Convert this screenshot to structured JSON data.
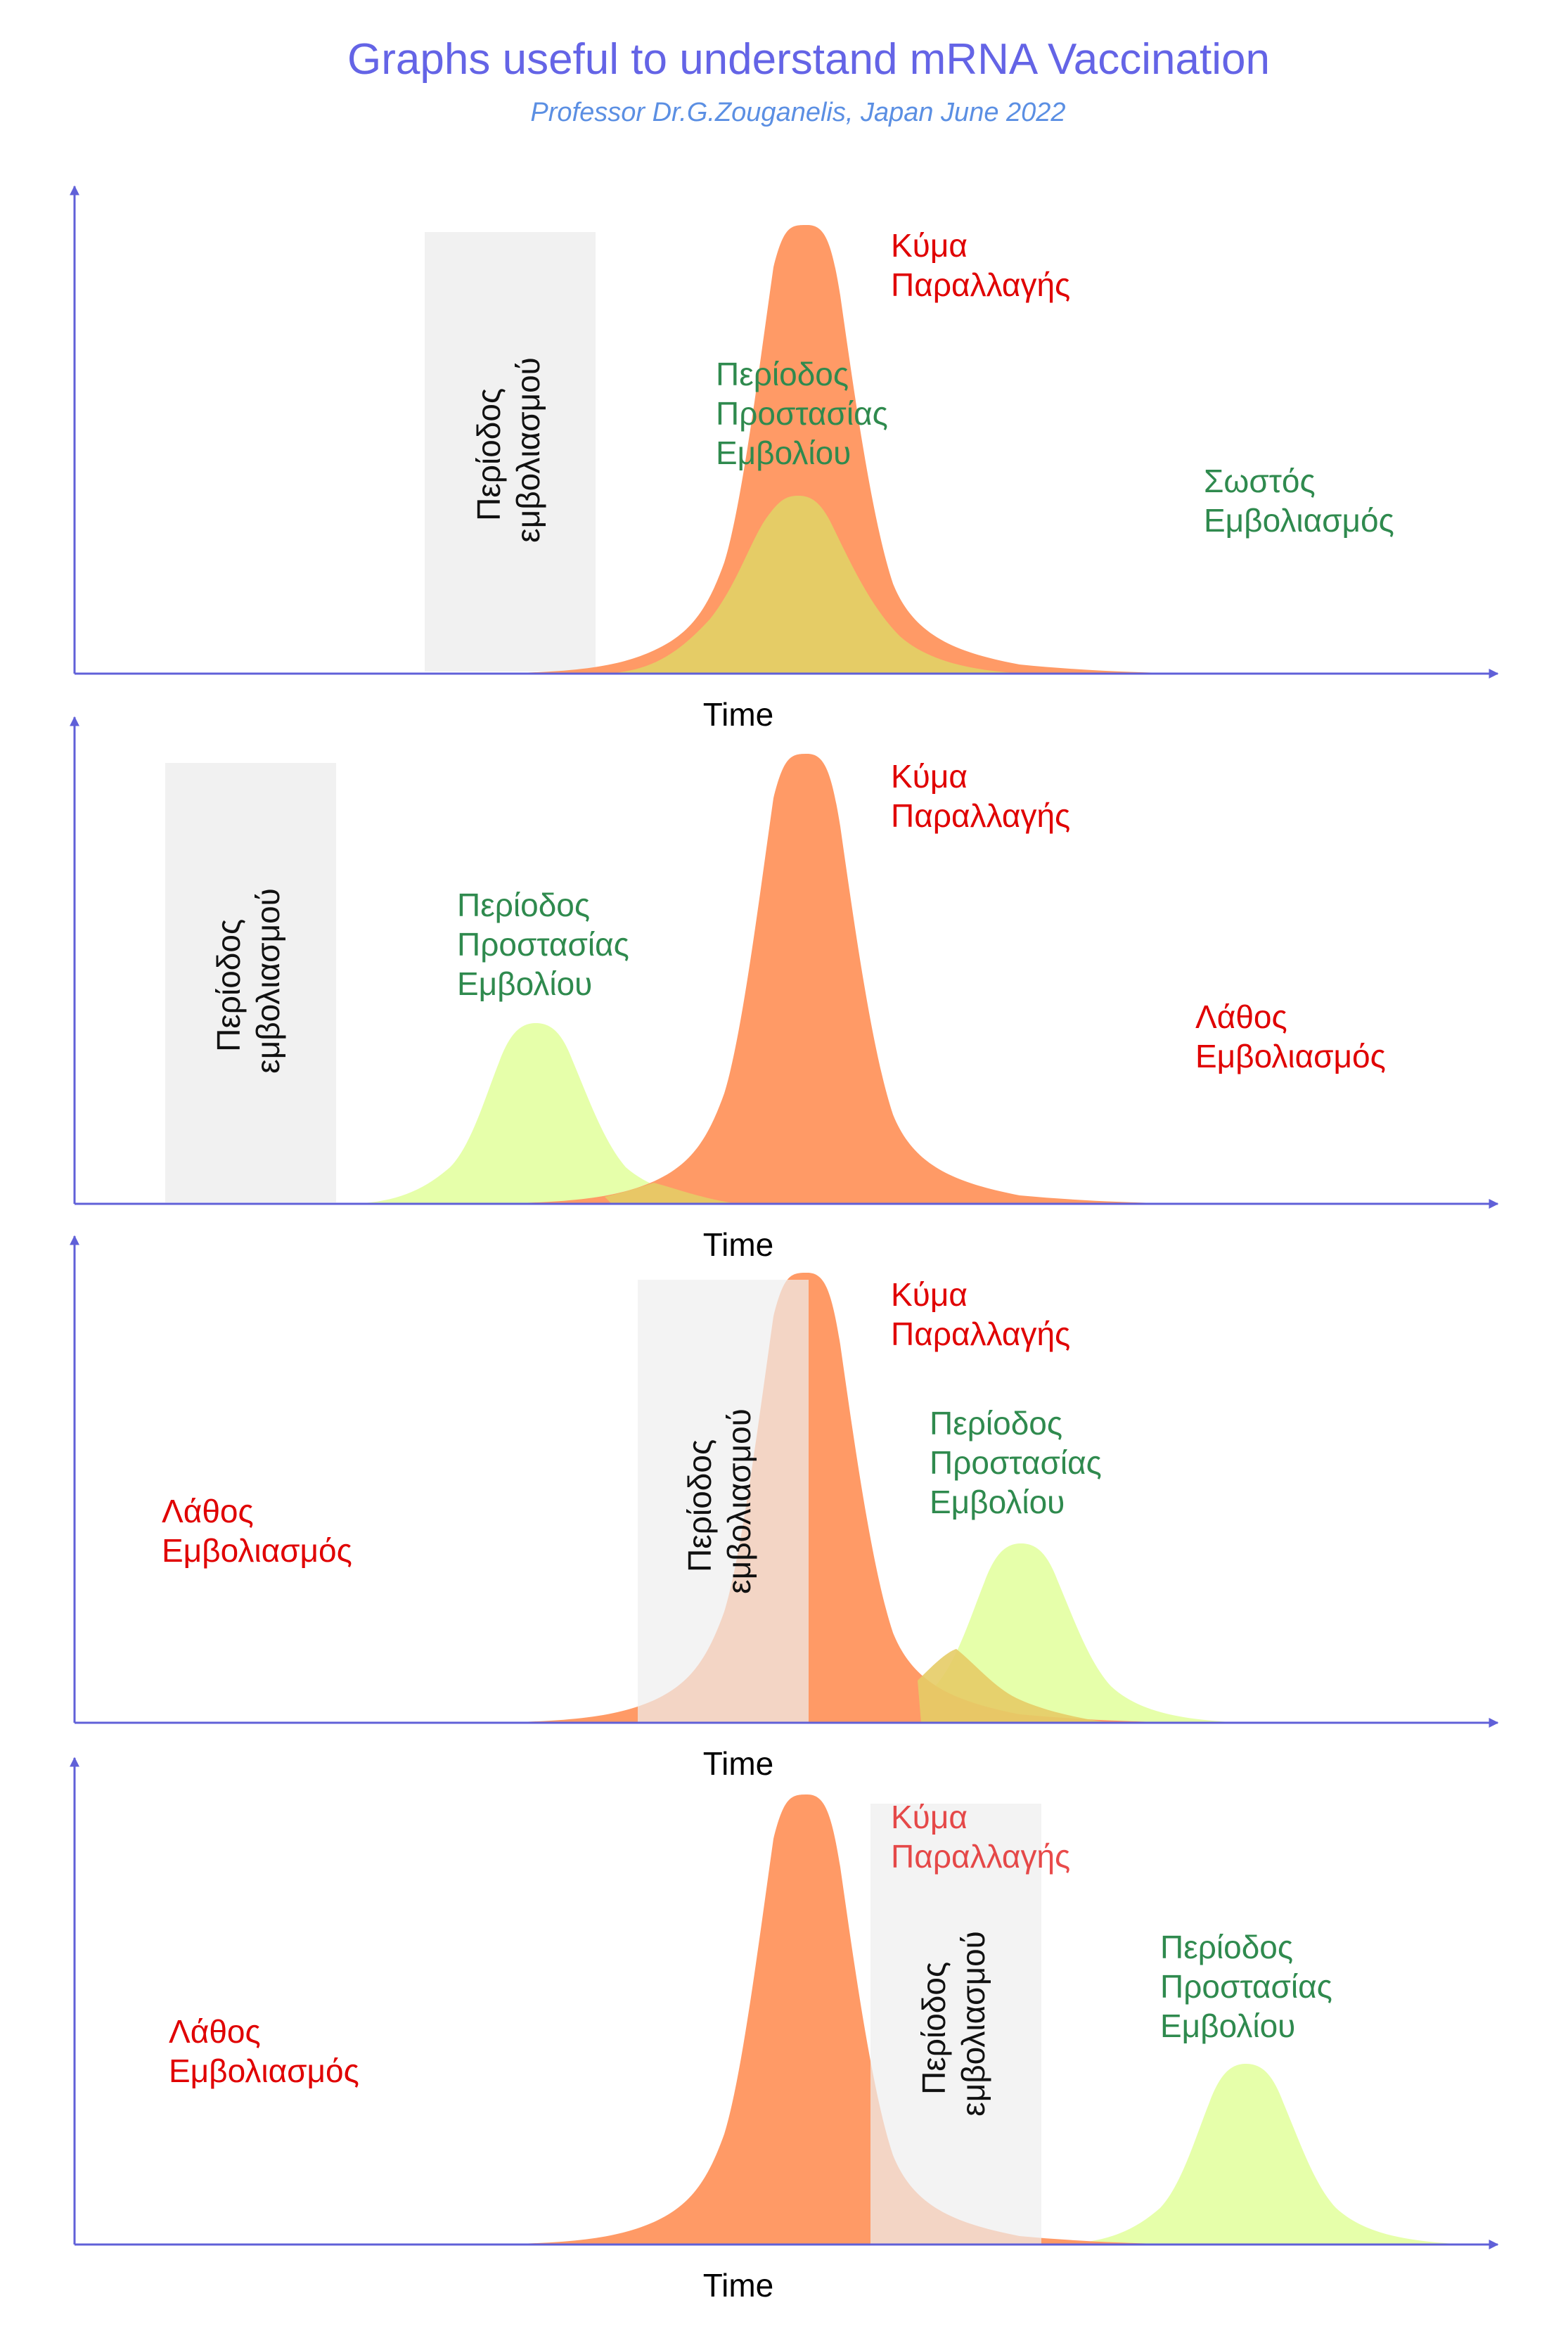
{
  "header": {
    "title": "Graphs useful to understand mRNA Vaccination",
    "subtitle": "Professor Dr.G.Zouganelis, Japan June 2022"
  },
  "colors": {
    "wave": "#ff9a66",
    "protection_light": "#e6ffaa",
    "protection_overlap": "#e5cc66",
    "vaccination_box": "#eeeeee",
    "axis": "#6060d8",
    "red_text": "#e00000",
    "green_text": "#2f8a4e"
  },
  "panels": [
    {
      "id": "panel-1",
      "x_axis_label": "Time",
      "wave_label": [
        "Κύμα",
        "Παραλλαγής"
      ],
      "vaccination_label": [
        "Περίοδος",
        "εμβολιασμού"
      ],
      "protection_label": [
        "Περίοδος",
        "Προστασίας",
        "Εμβολίου"
      ],
      "verdict_label": [
        "Σωστός",
        "Εμβολιασμός"
      ],
      "verdict_color": "green"
    },
    {
      "id": "panel-2",
      "x_axis_label": "Time",
      "wave_label": [
        "Κύμα",
        "Παραλλαγής"
      ],
      "vaccination_label": [
        "Περίοδος",
        "εμβολιασμού"
      ],
      "protection_label": [
        "Περίοδος",
        "Προστασίας",
        "Εμβολίου"
      ],
      "verdict_label": [
        "Λάθος",
        "Εμβολιασμός"
      ],
      "verdict_color": "red"
    },
    {
      "id": "panel-3",
      "x_axis_label": "Time",
      "wave_label": [
        "Κύμα",
        "Παραλλαγής"
      ],
      "vaccination_label": [
        "Περίοδος",
        "εμβολιασμού"
      ],
      "protection_label": [
        "Περίοδος",
        "Προστασίας",
        "Εμβολίου"
      ],
      "verdict_label": [
        "Λάθος",
        "Εμβολιασμός"
      ],
      "verdict_color": "red"
    },
    {
      "id": "panel-4",
      "x_axis_label": "Time",
      "wave_label": [
        "Κύμα",
        "Παραλλαγής"
      ],
      "vaccination_label": [
        "Περίοδος",
        "εμβολιασμού"
      ],
      "protection_label": [
        "Περίοδος",
        "Προστασίας",
        "Εμβολίου"
      ],
      "verdict_label": [
        "Λάθος",
        "Εμβολιασμός"
      ],
      "verdict_color": "red"
    }
  ]
}
